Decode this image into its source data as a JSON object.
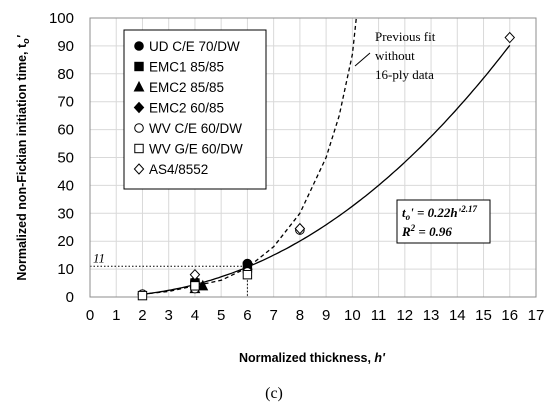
{
  "chart_data": {
    "type": "scatter",
    "title": "",
    "xlabel": "Normalized thickness, h'",
    "ylabel": "Normalized non-Fickian initiation time, tₒ'",
    "xlim": [
      0,
      17
    ],
    "ylim": [
      0,
      100
    ],
    "xticks": [
      "0",
      "1",
      "2",
      "3",
      "4",
      "5",
      "6",
      "7",
      "8",
      "9",
      "10",
      "11",
      "12",
      "13",
      "14",
      "15",
      "16",
      "17"
    ],
    "yticks": [
      "0",
      "10",
      "20",
      "30",
      "40",
      "50",
      "60",
      "70",
      "80",
      "90",
      "100"
    ],
    "grid": true,
    "legend_position": "top-left",
    "series": [
      {
        "name": "UD C/E 70/DW",
        "marker": "circle-filled",
        "points": [
          [
            2,
            1.0
          ],
          [
            4,
            5.5
          ],
          [
            6,
            12.0
          ]
        ]
      },
      {
        "name": "EMC1 85/85",
        "marker": "square-filled",
        "points": [
          [
            4,
            5.0
          ],
          [
            6,
            11.0
          ]
        ]
      },
      {
        "name": "EMC2 85/85",
        "marker": "triangle-filled",
        "points": [
          [
            4,
            3.0
          ],
          [
            4.3,
            4.0
          ]
        ]
      },
      {
        "name": "EMC2 60/85",
        "marker": "diamond-filled",
        "points": [
          [
            4,
            3.5
          ],
          [
            6,
            10.0
          ]
        ]
      },
      {
        "name": "WV C/E 60/DW",
        "marker": "circle-open",
        "points": [
          [
            2,
            1.0
          ],
          [
            4,
            3.0
          ],
          [
            6,
            9.0
          ],
          [
            8,
            24.0
          ]
        ]
      },
      {
        "name": "WV G/E 60/DW",
        "marker": "square-open",
        "points": [
          [
            2,
            0.5
          ],
          [
            4,
            4.0
          ],
          [
            6,
            8.0
          ]
        ]
      },
      {
        "name": "AS4/8552",
        "marker": "diamond-open",
        "points": [
          [
            4,
            8.0
          ],
          [
            8,
            24.5
          ],
          [
            16,
            93.0
          ]
        ]
      }
    ],
    "fits": [
      {
        "style": "solid",
        "coefficient": 0.22,
        "exponent": 2.17,
        "x_range": [
          2,
          16
        ]
      },
      {
        "style": "dashed",
        "x_range": [
          2,
          10.15
        ],
        "points": [
          [
            2,
            1.0
          ],
          [
            3,
            2.0
          ],
          [
            4,
            4.0
          ],
          [
            5,
            6.0
          ],
          [
            6,
            10.5
          ],
          [
            7,
            18.0
          ],
          [
            8,
            30.0
          ],
          [
            9,
            50.0
          ],
          [
            9.5,
            65.0
          ],
          [
            10,
            87.0
          ],
          [
            10.15,
            100.0
          ]
        ]
      }
    ],
    "equation_line1_main": "t",
    "equation_line1_sub": "o",
    "equation_line1_mid": "' = 0.22h'",
    "equation_line1_sup": "2.17",
    "equation_line2_main": "R",
    "equation_line2_sup": "2",
    "equation_line2_rest": " = 0.96",
    "annotation_fit_lines": [
      "Previous fit",
      "without",
      "16-ply data"
    ],
    "reference_value_label": "11",
    "reference_point": [
      6,
      11
    ],
    "ylabel_main": "Normalized non-Fickian initiation time, t",
    "ylabel_sub": "o",
    "ylabel_end": "'",
    "xlabel_main": "Normalized thickness, ",
    "xlabel_var": "h'"
  },
  "caption": "(c)"
}
